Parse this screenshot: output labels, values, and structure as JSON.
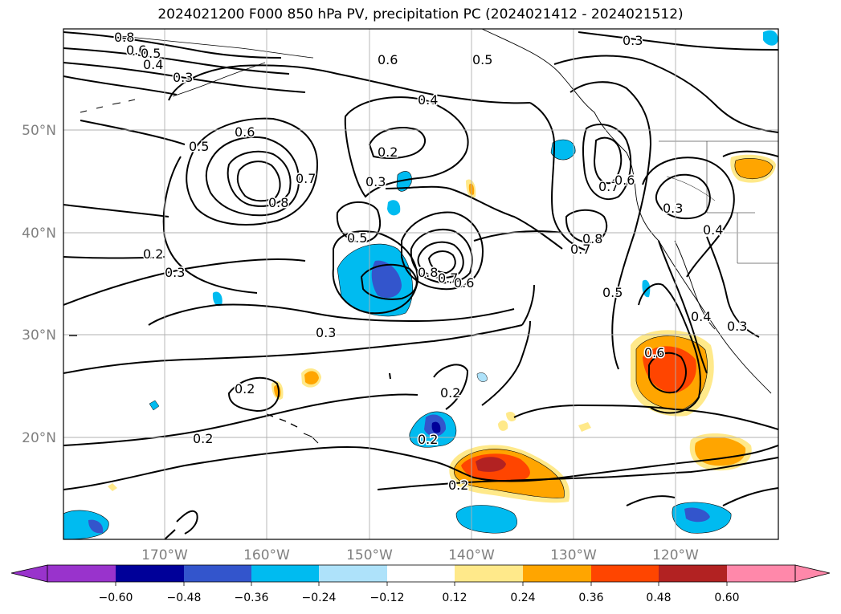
{
  "title": "2024021200 F000 850 hPa PV, precipitation PC (2024021412 - 2024021512)",
  "map": {
    "lat_labels": [
      "50°N",
      "40°N",
      "30°N",
      "20°N"
    ],
    "lon_labels": [
      "170°W",
      "160°W",
      "150°W",
      "140°W",
      "130°W",
      "120°W"
    ],
    "contour_labels": [
      "0.8",
      "0.6",
      "0.5",
      "0.4",
      "0.3",
      "0.6",
      "0.5",
      "0.3",
      "0.4",
      "0.5",
      "0.6",
      "0.2",
      "0.3",
      "0.7",
      "0.8",
      "0.7",
      "0.6",
      "0.3",
      "0.4",
      "0.5",
      "0.8",
      "0.7",
      "0.8",
      "0.7",
      "0.6",
      "0.2",
      "0.3",
      "0.3",
      "0.5",
      "0.4",
      "0.3",
      "0.6",
      "0.2",
      "0.2",
      "0.2",
      "0.2",
      "0.2"
    ],
    "colors": {
      "coast": "#000000",
      "grid": "#b0b0b0"
    }
  },
  "colorbar": {
    "ticks": [
      "−0.60",
      "−0.48",
      "−0.36",
      "−0.24",
      "−0.12",
      "0.12",
      "0.24",
      "0.36",
      "0.48",
      "0.60"
    ],
    "colors": [
      "#9933cc",
      "#000099",
      "#3355cc",
      "#00bbf0",
      "#aee2fa",
      "#ffffff",
      "#ffe98a",
      "#ffa500",
      "#ff4500",
      "#b22222",
      "#ff88aa"
    ]
  }
}
